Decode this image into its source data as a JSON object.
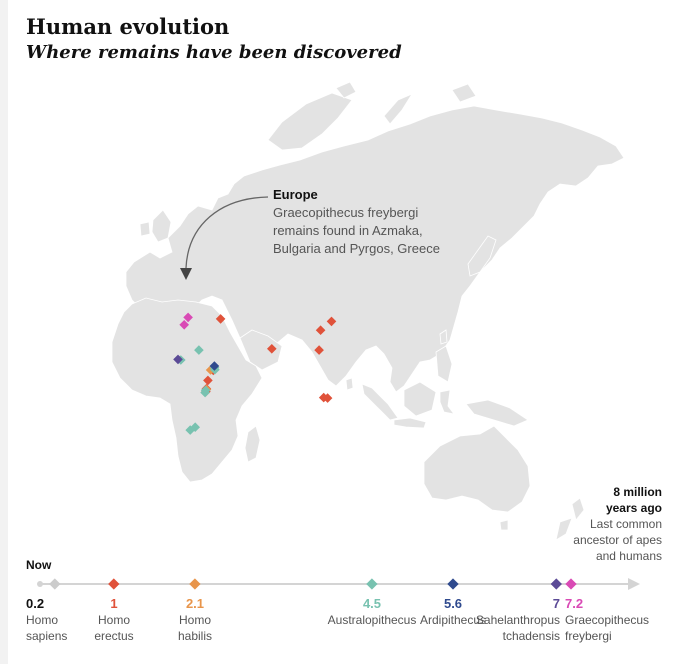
{
  "header": {
    "title": "Human evolution",
    "subtitle": "Where remains have been discovered"
  },
  "annotation": {
    "heading": "Europe",
    "lines": [
      "Graecopithecus freybergi",
      "remains found in Azmaka,",
      "Bulgaria and Pyrgos, Greece"
    ]
  },
  "colors": {
    "land": "#e3e3e3",
    "border": "#ffffff",
    "homo_sapiens": "#cccccc",
    "homo_erectus": "#e0523a",
    "homo_habilis": "#e8954b",
    "australopithecus": "#78c2b0",
    "ardipithecus": "#2f4a8e",
    "sahelanthropus": "#5b4a96",
    "graecopithecus": "#d94ab5",
    "axis": "#d4d4d4",
    "arrow": "#666666"
  },
  "timeline": {
    "now_label": "Now",
    "end_lines": [
      "8 million",
      "years ago",
      "Last common",
      "ancestor of apes",
      "and humans"
    ],
    "events": [
      {
        "value": "0.2",
        "mya": 0.2,
        "name_lines": [
          "Homo",
          "sapiens"
        ],
        "color_key": "homo_sapiens"
      },
      {
        "value": "1",
        "mya": 1,
        "name_lines": [
          "Homo",
          "erectus"
        ],
        "color_key": "homo_erectus"
      },
      {
        "value": "2.1",
        "mya": 2.1,
        "name_lines": [
          "Homo",
          "habilis"
        ],
        "color_key": "homo_habilis"
      },
      {
        "value": "4.5",
        "mya": 4.5,
        "name_lines": [
          "Australopithecus"
        ],
        "color_key": "australopithecus"
      },
      {
        "value": "5.6",
        "mya": 5.6,
        "name_lines": [
          "Ardipithecus"
        ],
        "color_key": "ardipithecus"
      },
      {
        "value": "7",
        "mya": 7,
        "name_lines": [
          "Sahelanthropus",
          "tchadensis"
        ],
        "color_key": "sahelanthropus"
      },
      {
        "value": "7.2",
        "mya": 7.2,
        "name_lines": [
          "Graecopithecus",
          "freybergi"
        ],
        "color_key": "graecopithecus"
      }
    ]
  },
  "sites": [
    {
      "species": "graecopithecus",
      "lon": 23.5,
      "lat": 42.2
    },
    {
      "species": "graecopithecus",
      "lon": 21.0,
      "lat": 37.6
    },
    {
      "species": "homo_erectus",
      "lon": 44.5,
      "lat": 41.3
    },
    {
      "species": "homo_erectus",
      "lon": 116.0,
      "lat": 39.7
    },
    {
      "species": "homo_erectus",
      "lon": 109.0,
      "lat": 34.3
    },
    {
      "species": "homo_erectus",
      "lon": 77.5,
      "lat": 22.8
    },
    {
      "species": "homo_erectus",
      "lon": 108.0,
      "lat": 22.0
    },
    {
      "species": "homo_erectus",
      "lon": 111.0,
      "lat": -7.3
    },
    {
      "species": "homo_erectus",
      "lon": 113.5,
      "lat": -7.6
    },
    {
      "species": "homo_erectus",
      "lon": 39.8,
      "lat": 9.5
    },
    {
      "species": "homo_erectus",
      "lon": 36.3,
      "lat": 3.3
    },
    {
      "species": "homo_erectus",
      "lon": 35.3,
      "lat": -1.8
    },
    {
      "species": "homo_erectus",
      "lon": 35.0,
      "lat": -3.6
    },
    {
      "species": "homo_habilis",
      "lon": 38.0,
      "lat": 9.7
    },
    {
      "species": "homo_habilis",
      "lon": 35.4,
      "lat": -2.3
    },
    {
      "species": "australopithecus",
      "lon": 30.5,
      "lat": 22.0
    },
    {
      "species": "australopithecus",
      "lon": 18.8,
      "lat": 15.9
    },
    {
      "species": "australopithecus",
      "lon": 40.6,
      "lat": 11.2
    },
    {
      "species": "australopithecus",
      "lon": 40.8,
      "lat": 9.9
    },
    {
      "species": "australopithecus",
      "lon": 34.8,
      "lat": -2.8
    },
    {
      "species": "australopithecus",
      "lon": 34.5,
      "lat": -4.2
    },
    {
      "species": "australopithecus",
      "lon": 28.1,
      "lat": -25.6
    },
    {
      "species": "australopithecus",
      "lon": 24.9,
      "lat": -27.4
    },
    {
      "species": "ardipithecus",
      "lon": 40.5,
      "lat": 12.2
    },
    {
      "species": "sahelanthropus",
      "lon": 17.0,
      "lat": 16.3
    }
  ]
}
